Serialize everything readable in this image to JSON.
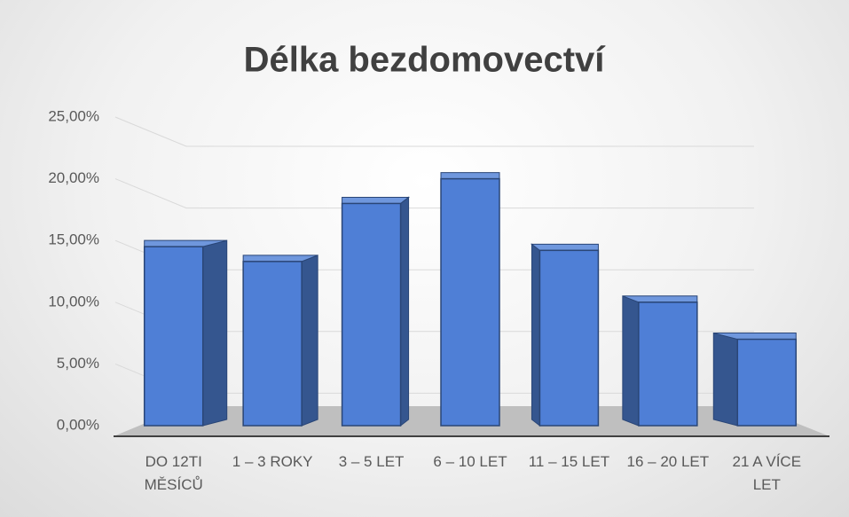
{
  "chart_data": {
    "type": "bar",
    "title": "Délka bezdomovectví",
    "categories": [
      "DO 12TI MĚSÍCŮ",
      "1 – 3 ROKY",
      "3 – 5 LET",
      "6 – 10 LET",
      "11 – 15 LET",
      "16 – 20 LET",
      "21 A VÍCE LET"
    ],
    "values": [
      14.5,
      13.3,
      18,
      20,
      14.2,
      10,
      7
    ],
    "color": "#4f7fd6",
    "ylim": [
      0,
      25
    ],
    "yticks": [
      {
        "value": 0,
        "label": "0,00%"
      },
      {
        "value": 5,
        "label": "5,00%"
      },
      {
        "value": 10,
        "label": "10,00%"
      },
      {
        "value": 15,
        "label": "15,00%"
      },
      {
        "value": 20,
        "label": "20,00%"
      },
      {
        "value": 25,
        "label": "25,00%"
      }
    ],
    "grid": true
  }
}
